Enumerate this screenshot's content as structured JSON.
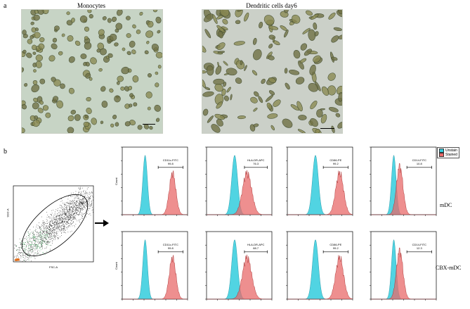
{
  "panel_a": {
    "label": "a",
    "left_title": "Monocytes",
    "right_title": "Dendritic cells day6"
  },
  "panel_b": {
    "label": "b",
    "scatter": {
      "xlabel": "FSC-A",
      "ylabel": "SSC-A"
    },
    "row_labels": [
      "mDC",
      "CBX-mDC"
    ],
    "legend": [
      {
        "name": "Unstain",
        "color": "#33ccdd"
      },
      {
        "name": "Stained",
        "color": "#e86a6a"
      }
    ],
    "histogram_ylabel": "Count",
    "histograms": [
      [
        {
          "marker": "CD11c-FITC",
          "percent": "99.8"
        },
        {
          "marker": "HLA-DR-APC",
          "percent": "76.3"
        },
        {
          "marker": "CD86-PE",
          "percent": "99.2"
        },
        {
          "marker": "CD14-FITC",
          "percent": "10.8"
        }
      ],
      [
        {
          "marker": "CD11c-FITC",
          "percent": "99.8"
        },
        {
          "marker": "HLA-DR-APC",
          "percent": "88.7"
        },
        {
          "marker": "CD86-PE",
          "percent": "99.2"
        },
        {
          "marker": "CD14-FITC",
          "percent": "12.3"
        }
      ]
    ]
  }
}
